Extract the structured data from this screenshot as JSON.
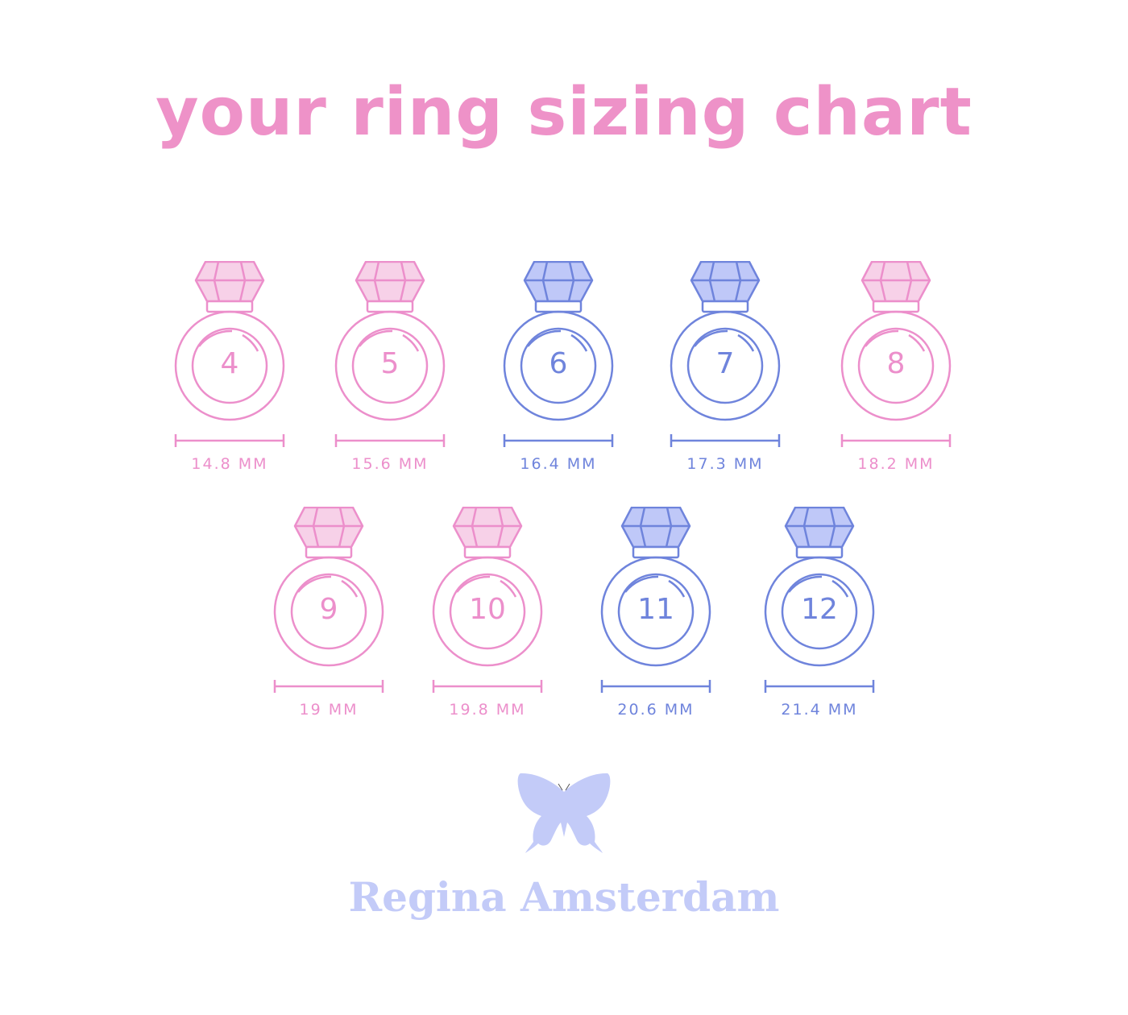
{
  "title": "your ring sizing chart",
  "colors": {
    "pink": "#ec8fcb",
    "pink_fill": "#f7d1e8",
    "blue": "#6f84dc",
    "blue_fill": "#bfc8f8",
    "title": "#ee92c8",
    "brand": "#c3cbf8"
  },
  "rings": [
    {
      "size": "4",
      "diameter": "14.8 MM",
      "color": "pink"
    },
    {
      "size": "5",
      "diameter": "15.6 MM",
      "color": "pink"
    },
    {
      "size": "6",
      "diameter": "16.4 MM",
      "color": "blue"
    },
    {
      "size": "7",
      "diameter": "17.3 MM",
      "color": "blue"
    },
    {
      "size": "8",
      "diameter": "18.2 MM",
      "color": "pink"
    },
    {
      "size": "9",
      "diameter": "19 MM",
      "color": "pink"
    },
    {
      "size": "10",
      "diameter": "19.8 MM",
      "color": "pink"
    },
    {
      "size": "11",
      "diameter": "20.6 MM",
      "color": "blue"
    },
    {
      "size": "12",
      "diameter": "21.4 MM",
      "color": "blue"
    }
  ],
  "brand": {
    "name": "Regina Amsterdam",
    "logo_icon": "butterfly-icon"
  }
}
